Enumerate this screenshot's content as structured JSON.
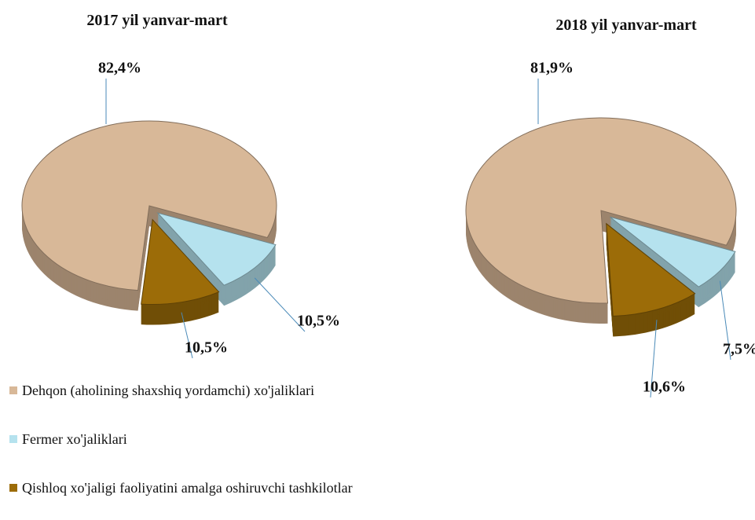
{
  "chart_data": [
    {
      "type": "pie",
      "title": "2017 yil yanvar-mart",
      "categories": [
        "Dehqon (aholining shaxshiq yordamchi) xo'jaliklari",
        "Fermer xo'jaliklari",
        "Qishloq xo'jaligi faoliyatini amalga oshiruvchi tashkilotlar"
      ],
      "values": [
        82.4,
        10.5,
        10.5
      ],
      "value_labels": [
        "82,4%",
        "10,5%",
        "10,5%"
      ],
      "colors": [
        "#d8b898",
        "#b5e2ee",
        "#9c6c08"
      ]
    },
    {
      "type": "pie",
      "title": "2018 yil yanvar-mart",
      "categories": [
        "Dehqon (aholining shaxshiq yordamchi) xo'jaliklari",
        "Fermer xo'jaliklari",
        "Qishloq xo'jaligi faoliyatini amalga oshiruvchi tashkilotlar"
      ],
      "values": [
        81.9,
        7.5,
        10.6
      ],
      "value_labels": [
        "81,9%",
        "7,5%",
        "10,6%"
      ],
      "colors": [
        "#d8b898",
        "#b5e2ee",
        "#9c6c08"
      ]
    }
  ]
}
